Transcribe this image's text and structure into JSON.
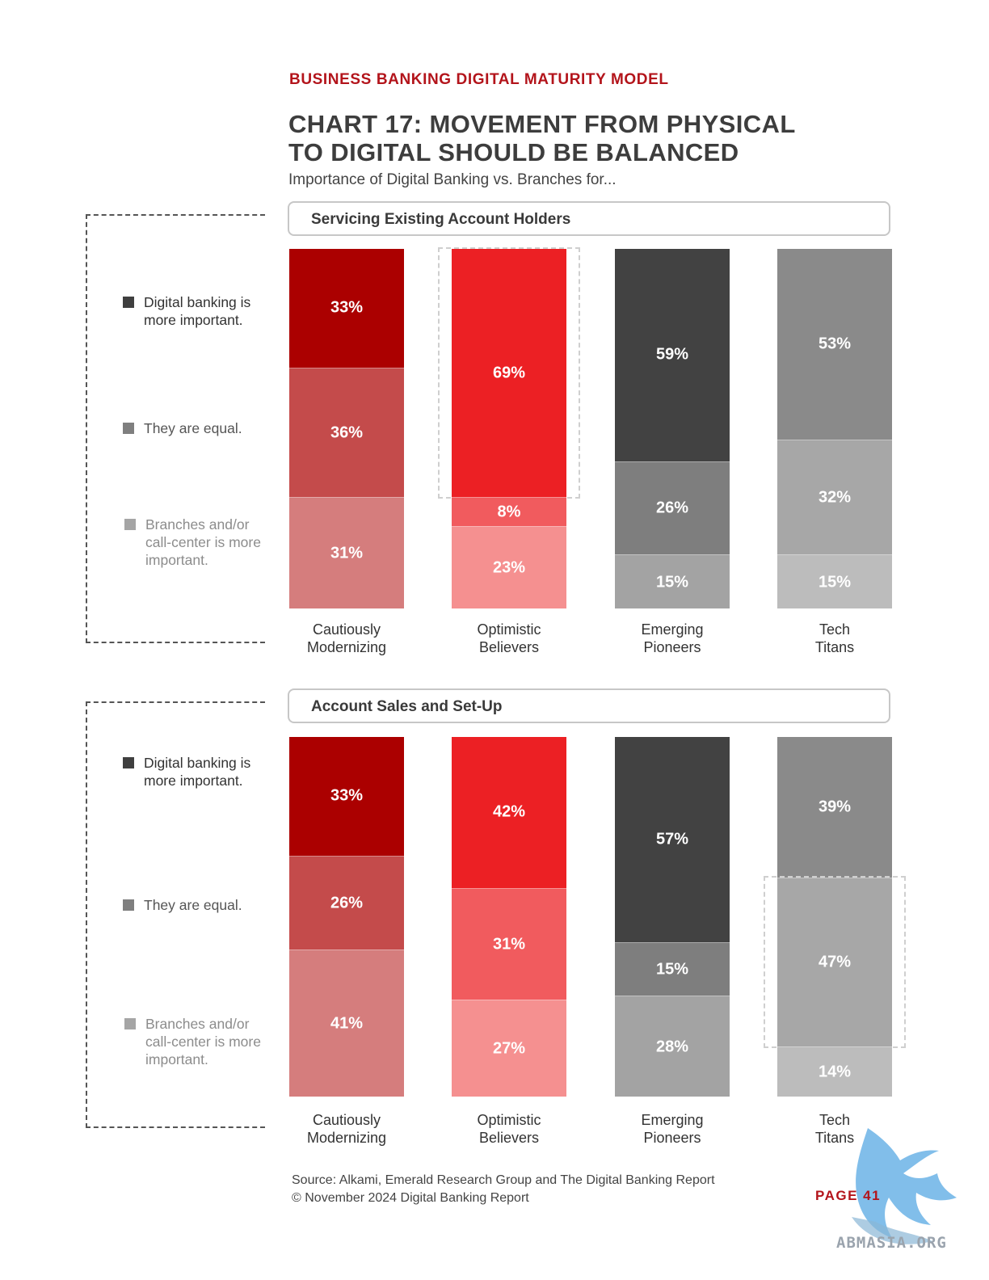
{
  "header": {
    "kicker": "BUSINESS BANKING DIGITAL MATURITY MODEL",
    "title_line1": "CHART 17: MOVEMENT FROM PHYSICAL",
    "title_line2": "TO DIGITAL SHOULD BE BALANCED",
    "subtitle": "Importance of Digital Banking vs. Branches for..."
  },
  "legend": [
    {
      "line1": "Digital banking is",
      "line2": "more important.",
      "color": "#3f3f3f",
      "text_color": "#333333"
    },
    {
      "line1": "They are equal.",
      "line2": "",
      "color": "#7f7f7f",
      "text_color": "#555555"
    },
    {
      "line1": "Branches and/or",
      "line2": "call-center is more",
      "line3": "important.",
      "color": "#a5a5a5",
      "text_color": "#8c8c8c"
    }
  ],
  "chart_data": [
    {
      "type": "bar",
      "stacked": true,
      "title": "Servicing Existing Account Holders",
      "categories": [
        {
          "line1": "Cautiously",
          "line2": "Modernizing"
        },
        {
          "line1": "Optimistic",
          "line2": "Believers"
        },
        {
          "line1": "Emerging",
          "line2": "Pioneers"
        },
        {
          "line1": "Tech",
          "line2": "Titans"
        }
      ],
      "series": [
        {
          "key": "digital",
          "values": [
            33,
            69,
            59,
            53
          ]
        },
        {
          "key": "equal",
          "values": [
            36,
            8,
            26,
            32
          ]
        },
        {
          "key": "branches",
          "values": [
            31,
            23,
            15,
            15
          ]
        }
      ],
      "labels": [
        [
          "33%",
          "36%",
          "31%"
        ],
        [
          "69%",
          "8%",
          "23%"
        ],
        [
          "59%",
          "26%",
          "15%"
        ],
        [
          "53%",
          "32%",
          "15%"
        ]
      ],
      "colors": [
        [
          "#ab0000",
          "#c44b4b",
          "#d57d7d"
        ],
        [
          "#ec2024",
          "#f15b5e",
          "#f59090"
        ],
        [
          "#424242",
          "#7e7e7e",
          "#a3a3a3"
        ],
        [
          "#8a8a8a",
          "#a7a7a7",
          "#bcbcbc"
        ]
      ],
      "highlight": {
        "category": 1,
        "segment": 0
      }
    },
    {
      "type": "bar",
      "stacked": true,
      "title": "Account Sales and Set-Up",
      "categories": [
        {
          "line1": "Cautiously",
          "line2": "Modernizing"
        },
        {
          "line1": "Optimistic",
          "line2": "Believers"
        },
        {
          "line1": "Emerging",
          "line2": "Pioneers"
        },
        {
          "line1": "Tech",
          "line2": "Titans"
        }
      ],
      "series": [
        {
          "key": "digital",
          "values": [
            33,
            42,
            57,
            39
          ]
        },
        {
          "key": "equal",
          "values": [
            26,
            31,
            15,
            47
          ]
        },
        {
          "key": "branches",
          "values": [
            41,
            27,
            28,
            14
          ]
        }
      ],
      "labels": [
        [
          "33%",
          "26%",
          "41%"
        ],
        [
          "42%",
          "31%",
          "27%"
        ],
        [
          "57%",
          "15%",
          "28%"
        ],
        [
          "39%",
          "47%",
          "14%"
        ]
      ],
      "colors": [
        [
          "#ab0000",
          "#c44b4b",
          "#d57d7d"
        ],
        [
          "#ec2024",
          "#f15b5e",
          "#f59090"
        ],
        [
          "#424242",
          "#7e7e7e",
          "#a3a3a3"
        ],
        [
          "#8a8a8a",
          "#a7a7a7",
          "#bcbcbc"
        ]
      ],
      "highlight": {
        "category": 3,
        "segment": 1
      }
    }
  ],
  "footer": {
    "source_line1": "Source: Alkami, Emerald Research Group and The Digital Banking Report",
    "source_line2": "© November 2024 Digital Banking Report",
    "page": "PAGE 41"
  },
  "watermark": {
    "text": "ABMASIA.ORG",
    "icon": "griffin-logo-icon"
  }
}
